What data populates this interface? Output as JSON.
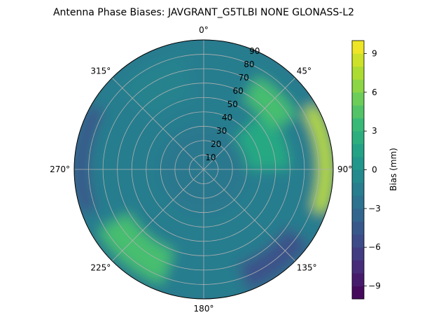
{
  "chart_data": {
    "type": "polar-contour",
    "title": "Antenna Phase Biases: JAVGRANT_G5TLBI NONE GLONASS-L2",
    "azimuth_labels": [
      "0°",
      "45°",
      "90°",
      "135°",
      "180°",
      "225°",
      "270°",
      "315°"
    ],
    "zenith_rings": [
      10,
      20,
      30,
      40,
      50,
      60,
      70,
      80,
      90
    ],
    "zenith_labels": [
      "10",
      "20",
      "30",
      "40",
      "50",
      "60",
      "70",
      "80",
      "90"
    ],
    "zenith_range": [
      0,
      90
    ],
    "colorbar": {
      "label": "Bias (mm)",
      "range": [
        -10,
        10
      ],
      "ticks": [
        -9,
        -6,
        -3,
        0,
        3,
        6,
        9
      ],
      "tick_labels": [
        "−9",
        "−6",
        "−3",
        "0",
        "3",
        "6",
        "9"
      ],
      "levels": 20,
      "colormap": "viridis"
    },
    "approx_bias_regions_mm": [
      {
        "zenith": [
          0,
          30
        ],
        "azimuth": [
          0,
          360
        ],
        "bias": -2
      },
      {
        "zenith": [
          30,
          60
        ],
        "azimuth": [
          45,
          90
        ],
        "bias": 2
      },
      {
        "zenith": [
          55,
          75
        ],
        "azimuth": [
          30,
          60
        ],
        "bias": 4
      },
      {
        "zenith": [
          80,
          90
        ],
        "azimuth": [
          60,
          110
        ],
        "bias": 8
      },
      {
        "zenith": [
          60,
          85
        ],
        "azimuth": [
          200,
          240
        ],
        "bias": 4
      },
      {
        "zenith": [
          80,
          90
        ],
        "azimuth": [
          250,
          300
        ],
        "bias": -5
      },
      {
        "zenith": [
          70,
          90
        ],
        "azimuth": [
          125,
          160
        ],
        "bias": -5
      },
      {
        "zenith": [
          50,
          80
        ],
        "azimuth": [
          315,
          350
        ],
        "bias": -1
      }
    ],
    "grid": true
  }
}
